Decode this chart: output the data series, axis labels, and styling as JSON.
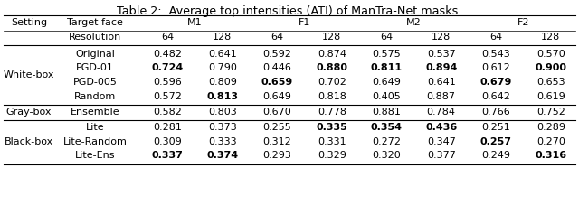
{
  "title": "Table 2:  Average top intensities (ATI) of ManTra-Net masks.",
  "sections": [
    {
      "label": "White-box",
      "rows": [
        {
          "method": "Original",
          "vals": [
            "0.482",
            "0.641",
            "0.592",
            "0.874",
            "0.575",
            "0.537",
            "0.543",
            "0.570"
          ],
          "bold": []
        },
        {
          "method": "PGD-01",
          "vals": [
            "0.724",
            "0.790",
            "0.446",
            "0.880",
            "0.811",
            "0.894",
            "0.612",
            "0.900"
          ],
          "bold": [
            0,
            3,
            4,
            5,
            7
          ]
        },
        {
          "method": "PGD-005",
          "vals": [
            "0.596",
            "0.809",
            "0.659",
            "0.702",
            "0.649",
            "0.641",
            "0.679",
            "0.653"
          ],
          "bold": [
            2,
            6
          ]
        },
        {
          "method": "Random",
          "vals": [
            "0.572",
            "0.813",
            "0.649",
            "0.818",
            "0.405",
            "0.887",
            "0.642",
            "0.619"
          ],
          "bold": [
            1
          ]
        }
      ]
    },
    {
      "label": "Gray-box",
      "rows": [
        {
          "method": "Ensemble",
          "vals": [
            "0.582",
            "0.803",
            "0.670",
            "0.778",
            "0.881",
            "0.784",
            "0.766",
            "0.752"
          ],
          "bold": []
        }
      ]
    },
    {
      "label": "Black-box",
      "rows": [
        {
          "method": "Lite",
          "vals": [
            "0.281",
            "0.373",
            "0.255",
            "0.335",
            "0.354",
            "0.436",
            "0.251",
            "0.289"
          ],
          "bold": [
            3,
            4,
            5
          ]
        },
        {
          "method": "Lite-Random",
          "vals": [
            "0.309",
            "0.333",
            "0.312",
            "0.331",
            "0.272",
            "0.347",
            "0.257",
            "0.270"
          ],
          "bold": [
            6
          ]
        },
        {
          "method": "Lite-Ens",
          "vals": [
            "0.337",
            "0.374",
            "0.293",
            "0.329",
            "0.320",
            "0.377",
            "0.249",
            "0.316"
          ],
          "bold": [
            0,
            1,
            7
          ]
        }
      ]
    }
  ],
  "group_labels": [
    "M1",
    "F1",
    "M2",
    "F2"
  ],
  "res_labels": [
    "64",
    "128",
    "64",
    "128",
    "64",
    "128",
    "64",
    "128"
  ],
  "bg_color": "#ffffff",
  "font_size": 8.0,
  "title_font_size": 9.2,
  "font_family": "DejaVu Sans"
}
